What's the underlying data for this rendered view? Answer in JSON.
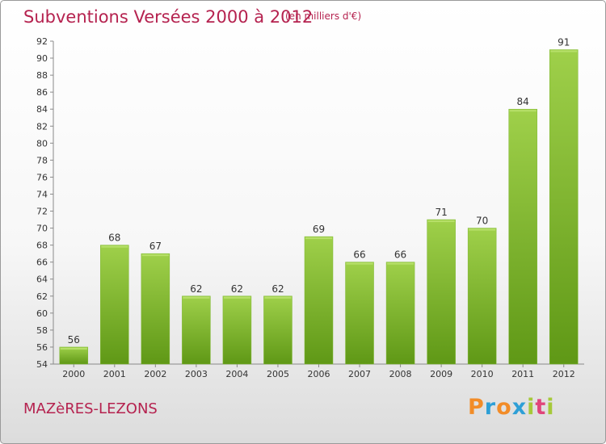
{
  "header": {
    "title": "Subventions Versées 2000 à 2012",
    "subtitle": "(en milliers d'€)"
  },
  "footer": {
    "place_name": "MAZèRES-LEZONS",
    "logo_text": "Proxiti"
  },
  "colors": {
    "title": "#b5224f",
    "bar_light": "#9fd04a",
    "bar_dark": "#5f9816",
    "logo_letters": [
      "#f28c28",
      "#2e9fd6",
      "#f28c28",
      "#2e9fd6",
      "#a6c93a",
      "#e0457b",
      "#a6c93a"
    ]
  },
  "chart_data": {
    "type": "bar",
    "categories": [
      "2000",
      "2001",
      "2002",
      "2003",
      "2004",
      "2005",
      "2006",
      "2007",
      "2008",
      "2009",
      "2010",
      "2011",
      "2012"
    ],
    "values": [
      56,
      68,
      67,
      62,
      62,
      62,
      69,
      66,
      66,
      71,
      70,
      84,
      91
    ],
    "data_labels": [
      "56",
      "68",
      "67",
      "62",
      "62",
      "62",
      "69",
      "66",
      "66",
      "71",
      "70",
      "84",
      "91"
    ],
    "ylim": [
      54,
      92
    ],
    "yticks": [
      "54",
      "56",
      "58",
      "60",
      "62",
      "64",
      "66",
      "68",
      "70",
      "72",
      "74",
      "76",
      "78",
      "80",
      "82",
      "84",
      "86",
      "88",
      "90",
      "92"
    ],
    "grid": false,
    "legend": "none"
  }
}
